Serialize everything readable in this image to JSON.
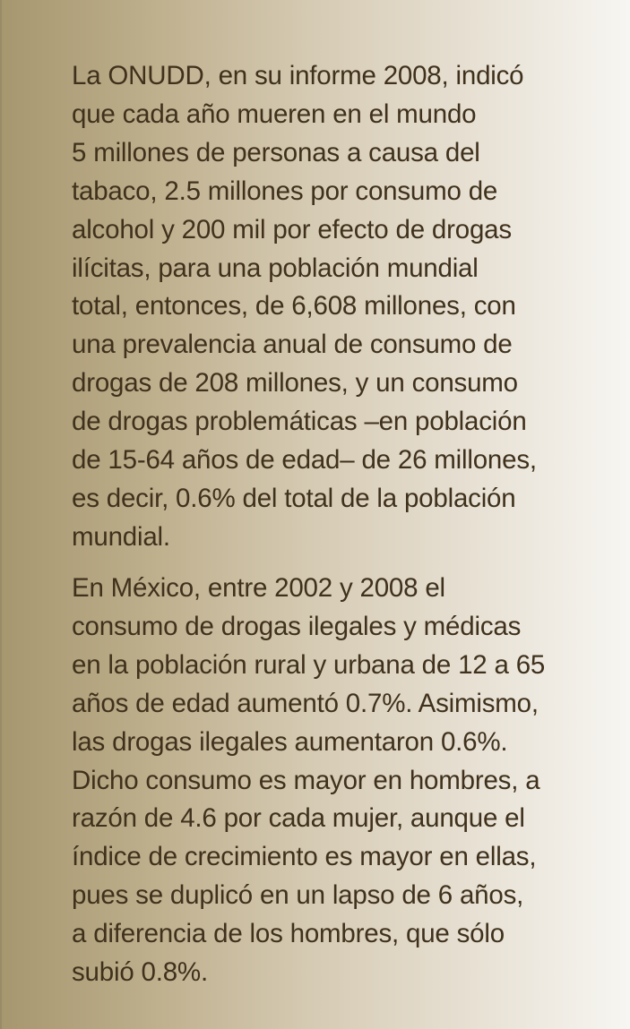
{
  "paragraphs": [
    {
      "lines": [
        "La ONUDD, en su informe 2008, indicó",
        "que cada año mueren en el mundo",
        "5 millones de personas a causa del",
        "tabaco, 2.5 millones por consumo de",
        "alcohol y 200 mil por efecto de drogas",
        "ilícitas, para una población mundial",
        "total, entonces, de 6,608 millones, con",
        "una prevalencia anual de consumo de",
        "drogas de 208 millones, y un consumo",
        "de drogas problemáticas –en población",
        "de 15-64 años de edad– de 26 millones,",
        "es decir, 0.6% del total de la población",
        "mundial."
      ]
    },
    {
      "lines": [
        "En México, entre 2002 y 2008 el",
        "consumo de drogas ilegales y médicas",
        "en la población rural y urbana de 12 a 65",
        "años de edad aumentó 0.7%. Asimismo,",
        "las drogas ilegales aumentaron 0.6%.",
        "Dicho consumo es mayor en hombres, a",
        "razón de 4.6 por cada mujer, aunque el",
        "índice de crecimiento es mayor en ellas,",
        "pues se duplicó en un lapso de 6 años,",
        "a diferencia de los hombres, que sólo",
        "subió 0.8%."
      ]
    }
  ],
  "colors": {
    "text": "#3f311c",
    "gradient_left": "#a6976f",
    "gradient_right": "#f7f6f2"
  }
}
